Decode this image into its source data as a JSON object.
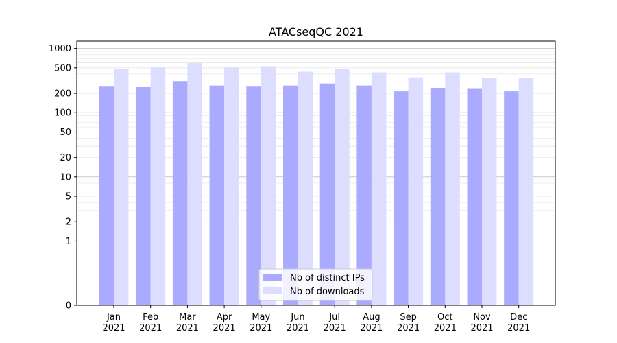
{
  "chart_data": {
    "type": "bar",
    "title": "ATACseqQC 2021",
    "xlabel": "",
    "ylabel": "",
    "yscale": "symlog",
    "ylim": [
      0,
      1300
    ],
    "yticks": [
      0,
      1,
      2,
      5,
      10,
      20,
      50,
      100,
      200,
      500,
      1000
    ],
    "grid": true,
    "legend_position": "bottom-center",
    "categories": [
      "Jan\n2021",
      "Feb\n2021",
      "Mar\n2021",
      "Apr\n2021",
      "May\n2021",
      "Jun\n2021",
      "Jul\n2021",
      "Aug\n2021",
      "Sep\n2021",
      "Oct\n2021",
      "Nov\n2021",
      "Dec\n2021"
    ],
    "series": [
      {
        "name": "Nb of distinct IPs",
        "color": "#aaaaff",
        "values": [
          255,
          250,
          310,
          265,
          255,
          265,
          285,
          265,
          215,
          240,
          235,
          215
        ]
      },
      {
        "name": "Nb of downloads",
        "color": "#ddddff",
        "values": [
          475,
          510,
          590,
          510,
          530,
          435,
          475,
          425,
          355,
          425,
          345,
          345
        ]
      }
    ]
  }
}
